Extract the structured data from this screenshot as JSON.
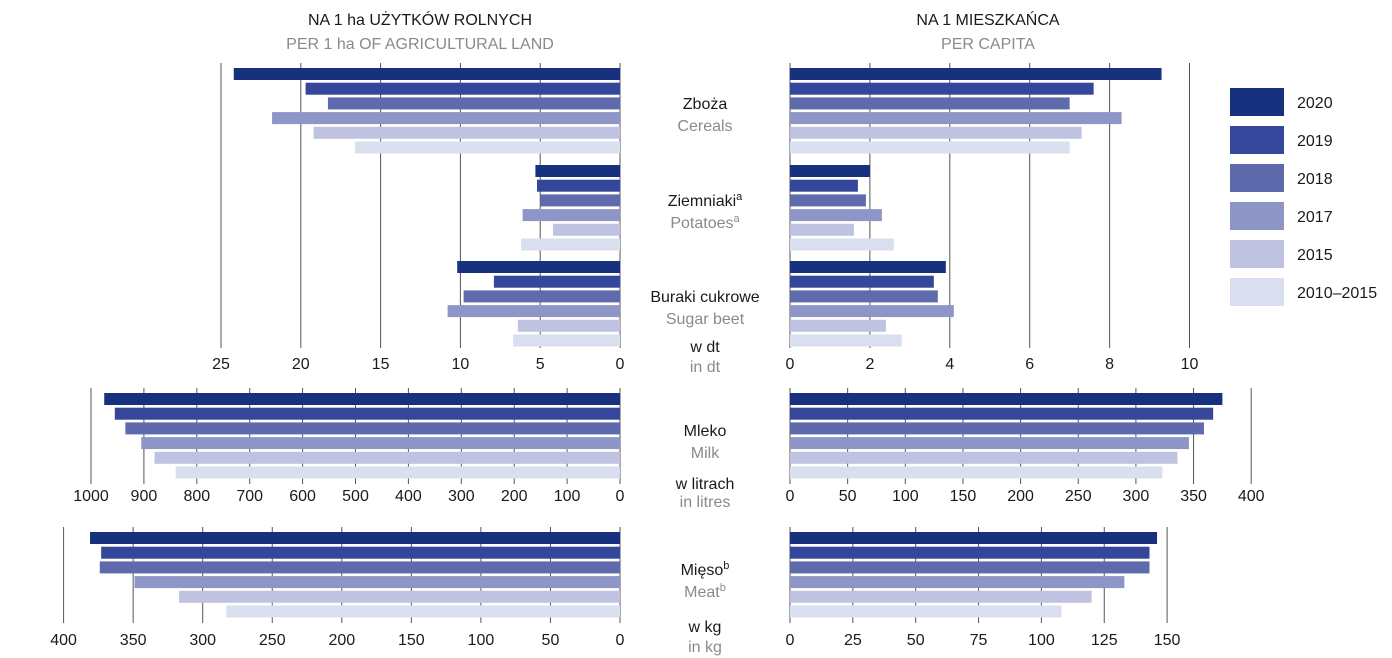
{
  "headers": {
    "left_pl": "NA 1 ha UŻYTKÓW ROLNYCH",
    "left_en": "PER 1 ha OF AGRICULTURAL LAND",
    "right_pl": "NA 1 MIESZKAŃCA",
    "right_en": "PER CAPITA"
  },
  "colors": [
    "#17317f",
    "#34479a",
    "#5e6aab",
    "#8e95c7",
    "#bfc3e1",
    "#dadff0"
  ],
  "legend": [
    "2020",
    "2019",
    "2018",
    "2017",
    "2015",
    "2010–2015"
  ],
  "chart_data": [
    {
      "type": "bar",
      "panel": "top",
      "unit_pl": "w dt",
      "unit_en": "in dt",
      "left_axis": {
        "max": 25,
        "ticks": [
          25,
          20,
          15,
          10,
          5,
          0
        ]
      },
      "right_axis": {
        "max": 10,
        "ticks": [
          0,
          2,
          4,
          6,
          8,
          10
        ]
      },
      "series_names": [
        "2020",
        "2019",
        "2018",
        "2017",
        "2015",
        "2010–2015"
      ],
      "groups": [
        {
          "label_pl": "Zboża",
          "label_en": "Cereals",
          "sup": "",
          "left": [
            24.2,
            19.7,
            18.3,
            21.8,
            19.2,
            16.6
          ],
          "right": [
            9.3,
            7.6,
            7.0,
            8.3,
            7.3,
            7.0
          ]
        },
        {
          "label_pl": "Ziemniaki",
          "label_en": "Potatoes",
          "sup": "a",
          "left": [
            5.3,
            5.2,
            5.0,
            6.1,
            4.2,
            6.2
          ],
          "right": [
            2.0,
            1.7,
            1.9,
            2.3,
            1.6,
            2.6
          ]
        },
        {
          "label_pl": "Buraki cukrowe",
          "label_en": "Sugar beet",
          "sup": "",
          "left": [
            10.2,
            7.9,
            9.8,
            10.8,
            6.4,
            6.7
          ],
          "right": [
            3.9,
            3.6,
            3.7,
            4.1,
            2.4,
            2.8
          ]
        }
      ]
    },
    {
      "type": "bar",
      "panel": "milk",
      "unit_pl": "w litrach",
      "unit_en": "in litres",
      "left_axis": {
        "max": 1000,
        "ticks": [
          1000,
          900,
          800,
          700,
          600,
          500,
          400,
          300,
          200,
          100,
          0
        ]
      },
      "right_axis": {
        "max": 400,
        "ticks": [
          0,
          50,
          100,
          150,
          200,
          250,
          300,
          350,
          400
        ]
      },
      "series_names": [
        "2020",
        "2019",
        "2018",
        "2017",
        "2015",
        "2010–2015"
      ],
      "groups": [
        {
          "label_pl": "Mleko",
          "label_en": "Milk",
          "sup": "",
          "left": [
            975,
            955,
            935,
            905,
            880,
            840
          ],
          "right": [
            375,
            367,
            359,
            346,
            336,
            323
          ]
        }
      ]
    },
    {
      "type": "bar",
      "panel": "meat",
      "unit_pl": "w kg",
      "unit_en": "in kg",
      "left_axis": {
        "max": 400,
        "ticks": [
          400,
          350,
          300,
          250,
          200,
          150,
          100,
          50,
          0
        ]
      },
      "right_axis": {
        "max": 150,
        "ticks": [
          0,
          25,
          50,
          75,
          100,
          125,
          150
        ]
      },
      "series_names": [
        "2020",
        "2019",
        "2018",
        "2017",
        "2015",
        "2010–2015"
      ],
      "groups": [
        {
          "label_pl": "Mięso",
          "label_en": "Meat",
          "sup": "b",
          "left": [
            381,
            373,
            374,
            349,
            317,
            283
          ],
          "right": [
            146,
            143,
            143,
            133,
            120,
            108
          ]
        }
      ]
    }
  ]
}
